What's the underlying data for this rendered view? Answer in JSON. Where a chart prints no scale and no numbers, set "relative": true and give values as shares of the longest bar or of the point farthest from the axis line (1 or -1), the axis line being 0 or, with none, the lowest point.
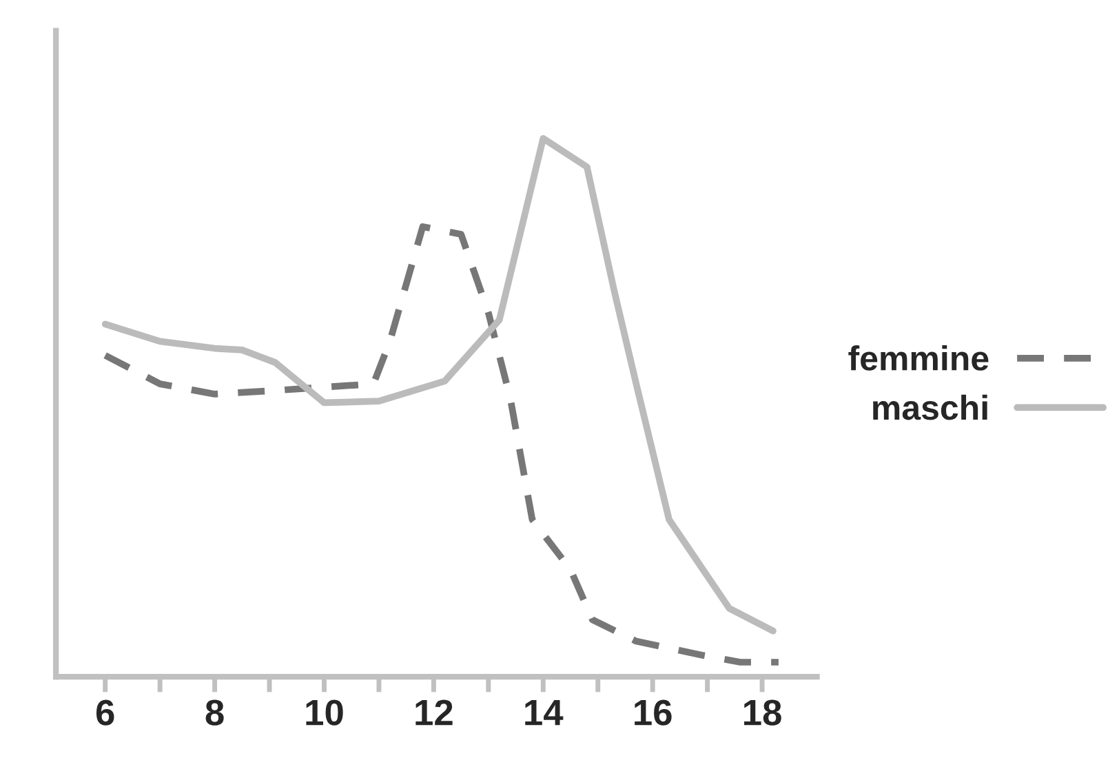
{
  "chart_data": {
    "type": "line",
    "relative": true,
    "xlim": [
      5.1,
      19.0
    ],
    "xticks": [
      6,
      {
        "value": 7,
        "label": null
      },
      8,
      {
        "value": 9,
        "label": null
      },
      10,
      {
        "value": 11,
        "label": null
      },
      12,
      {
        "value": 13,
        "label": null
      },
      14,
      {
        "value": 15,
        "label": null
      },
      16,
      {
        "value": 17,
        "label": null
      },
      18
    ],
    "legend": "right",
    "grid": false,
    "series": [
      {
        "name": "femmine",
        "color": "#777777",
        "line_style": "dashed",
        "x": [
          6,
          7,
          8,
          9,
          10,
          10.9,
          11.2,
          11.8,
          12.5,
          13,
          13.4,
          13.8,
          14.5,
          14.9,
          15.7,
          16.9,
          17.6,
          18.3
        ],
        "values": [
          0.597,
          0.544,
          0.525,
          0.531,
          0.538,
          0.544,
          0.623,
          0.836,
          0.822,
          0.676,
          0.517,
          0.292,
          0.199,
          0.106,
          0.066,
          0.04,
          0.027,
          0.027
        ]
      },
      {
        "name": "maschi",
        "color": "#bbbbbb",
        "line_style": "solid",
        "x": [
          6,
          7,
          8,
          8.5,
          9.1,
          10,
          11,
          12.2,
          13.2,
          14,
          14.8,
          15.3,
          15.7,
          16.3,
          17.4,
          18.2
        ],
        "values": [
          0.655,
          0.623,
          0.61,
          0.607,
          0.584,
          0.509,
          0.512,
          0.549,
          0.663,
          1.0,
          0.947,
          0.716,
          0.544,
          0.292,
          0.127,
          0.085
        ]
      }
    ]
  }
}
